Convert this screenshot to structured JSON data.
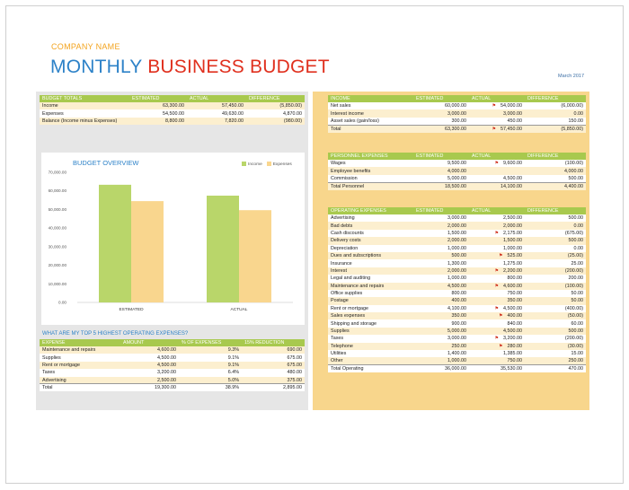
{
  "header": {
    "company": "COMPANY NAME",
    "title_part1": "MONTHLY",
    "title_part2": "BUSINESS BUDGET",
    "date": "March 2017"
  },
  "colors": {
    "green": "#a8c94e",
    "gold": "#f8d68c",
    "blue": "#2d82c8",
    "red": "#e0301e"
  },
  "budget_totals": {
    "headers": [
      "BUDGET TOTALS",
      "ESTIMATED",
      "ACTUAL",
      "DIFFERENCE"
    ],
    "rows": [
      [
        "Income",
        "63,300.00",
        "57,450.00",
        "(5,850.00)"
      ],
      [
        "Expenses",
        "54,500.00",
        "49,630.00",
        "4,870.00"
      ],
      [
        "Balance (Income minus Expenses)",
        "8,800.00",
        "7,820.00",
        "(980.00)"
      ]
    ]
  },
  "chart": {
    "title": "BUDGET OVERVIEW",
    "legend": [
      "Income",
      "Expenses"
    ]
  },
  "chart_data": {
    "type": "bar",
    "title": "BUDGET OVERVIEW",
    "categories": [
      "ESTIMATED",
      "ACTUAL"
    ],
    "series": [
      {
        "name": "Income",
        "values": [
          63300,
          57450
        ],
        "color": "#b9d66a"
      },
      {
        "name": "Expenses",
        "values": [
          54500,
          49630
        ],
        "color": "#f9d68e"
      }
    ],
    "ylim": [
      0,
      70000
    ],
    "yticks": [
      "0.00",
      "10,000.00",
      "20,000.00",
      "30,000.00",
      "40,000.00",
      "50,000.00",
      "60,000.00",
      "70,000.00"
    ],
    "category_labels": [
      "ESTIMATED",
      "ACTUAL"
    ],
    "grid": false,
    "legend_position": "top-right"
  },
  "top5": {
    "heading": "WHAT ARE MY TOP 5 HIGHEST OPERATING EXPENSES?",
    "headers": [
      "EXPENSE",
      "AMOUNT",
      "% OF EXPENSES",
      "15% REDUCTION"
    ],
    "rows": [
      [
        "Maintenance and repairs",
        "4,600.00",
        "9.3%",
        "690.00"
      ],
      [
        "Supplies",
        "4,500.00",
        "9.1%",
        "675.00"
      ],
      [
        "Rent or mortgage",
        "4,500.00",
        "9.1%",
        "675.00"
      ],
      [
        "Taxes",
        "3,200.00",
        "6.4%",
        "480.00"
      ],
      [
        "Advertising",
        "2,500.00",
        "5.0%",
        "375.00"
      ],
      [
        "Total",
        "19,300.00",
        "38.9%",
        "2,895.00"
      ]
    ]
  },
  "income": {
    "headers": [
      "INCOME",
      "ESTIMATED",
      "ACTUAL",
      "DIFFERENCE"
    ],
    "rows": [
      [
        "Net sales",
        "60,000.00",
        "54,000.00",
        "(6,000.00)"
      ],
      [
        "Interest income",
        "3,000.00",
        "3,000.00",
        "0.00"
      ],
      [
        "Asset sales (gain/loss)",
        "300.00",
        "450.00",
        "150.00"
      ],
      [
        "Total",
        "63,300.00",
        "57,450.00",
        "(5,850.00)"
      ]
    ]
  },
  "personnel": {
    "headers": [
      "PERSONNEL EXPENSES",
      "ESTIMATED",
      "ACTUAL",
      "DIFFERENCE"
    ],
    "rows": [
      [
        "Wages",
        "9,500.00",
        "9,600.00",
        "(100.00)"
      ],
      [
        "Employee benefits",
        "4,000.00",
        "",
        "4,000.00"
      ],
      [
        "Commission",
        "5,000.00",
        "4,500.00",
        "500.00"
      ],
      [
        "Total Personnel",
        "18,500.00",
        "14,100.00",
        "4,400.00"
      ]
    ]
  },
  "operating": {
    "headers": [
      "OPERATING EXPENSES",
      "ESTIMATED",
      "ACTUAL",
      "DIFFERENCE"
    ],
    "rows": [
      [
        "Advertising",
        "3,000.00",
        "2,500.00",
        "500.00"
      ],
      [
        "Bad debts",
        "2,000.00",
        "2,000.00",
        "0.00"
      ],
      [
        "Cash discounts",
        "1,500.00",
        "2,175.00",
        "(675.00)"
      ],
      [
        "Delivery costs",
        "2,000.00",
        "1,500.00",
        "500.00"
      ],
      [
        "Depreciation",
        "1,000.00",
        "1,000.00",
        "0.00"
      ],
      [
        "Dues and subscriptions",
        "500.00",
        "525.00",
        "(25.00)"
      ],
      [
        "Insurance",
        "1,300.00",
        "1,275.00",
        "25.00"
      ],
      [
        "Interest",
        "2,000.00",
        "2,200.00",
        "(200.00)"
      ],
      [
        "Legal and auditing",
        "1,000.00",
        "800.00",
        "200.00"
      ],
      [
        "Maintenance and repairs",
        "4,500.00",
        "4,600.00",
        "(100.00)"
      ],
      [
        "Office supplies",
        "800.00",
        "750.00",
        "50.00"
      ],
      [
        "Postage",
        "400.00",
        "350.00",
        "50.00"
      ],
      [
        "Rent or mortgage",
        "4,100.00",
        "4,500.00",
        "(400.00)"
      ],
      [
        "Sales expenses",
        "350.00",
        "400.00",
        "(50.00)"
      ],
      [
        "Shipping and storage",
        "900.00",
        "840.00",
        "60.00"
      ],
      [
        "Supplies",
        "5,000.00",
        "4,500.00",
        "500.00"
      ],
      [
        "Taxes",
        "3,000.00",
        "3,200.00",
        "(200.00)"
      ],
      [
        "Telephone",
        "250.00",
        "280.00",
        "(30.00)"
      ],
      [
        "Utilities",
        "1,400.00",
        "1,385.00",
        "15.00"
      ],
      [
        "Other",
        "1,000.00",
        "750.00",
        "250.00"
      ],
      [
        "Total Operating",
        "36,000.00",
        "35,530.00",
        "470.00"
      ]
    ]
  }
}
